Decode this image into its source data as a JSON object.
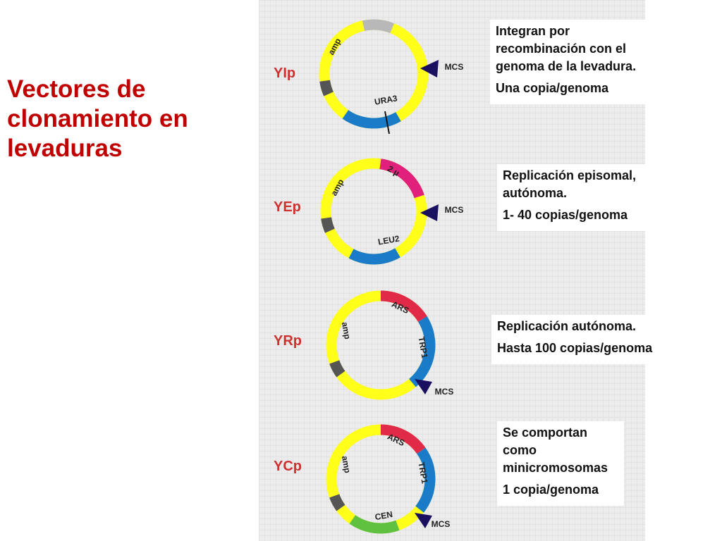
{
  "title": "Vectores de clonamiento en levaduras",
  "vectors": [
    {
      "name": "YIp",
      "labels": [
        "amp",
        "URA3",
        "MCS"
      ],
      "notes": [
        "Integran por recombinación con el genoma de la levadura.",
        "Una copia/genoma"
      ]
    },
    {
      "name": "YEp",
      "labels": [
        "2 µ",
        "amp",
        "MCS",
        "LEU2"
      ],
      "notes": [
        "Replicación episomal, autónoma.",
        "1- 40  copias/genoma"
      ]
    },
    {
      "name": "YRp",
      "labels": [
        "ARS",
        "amp",
        "TRP1",
        "MCS"
      ],
      "notes": [
        "Replicación autónoma.",
        "Hasta 100 copias/genoma"
      ]
    },
    {
      "name": "YCp",
      "labels": [
        "ARS",
        "amp",
        "TRP1",
        "CEN",
        "MCS"
      ],
      "notes": [
        "Se comportan como minicromosomas",
        "1 copia/genoma"
      ]
    }
  ]
}
